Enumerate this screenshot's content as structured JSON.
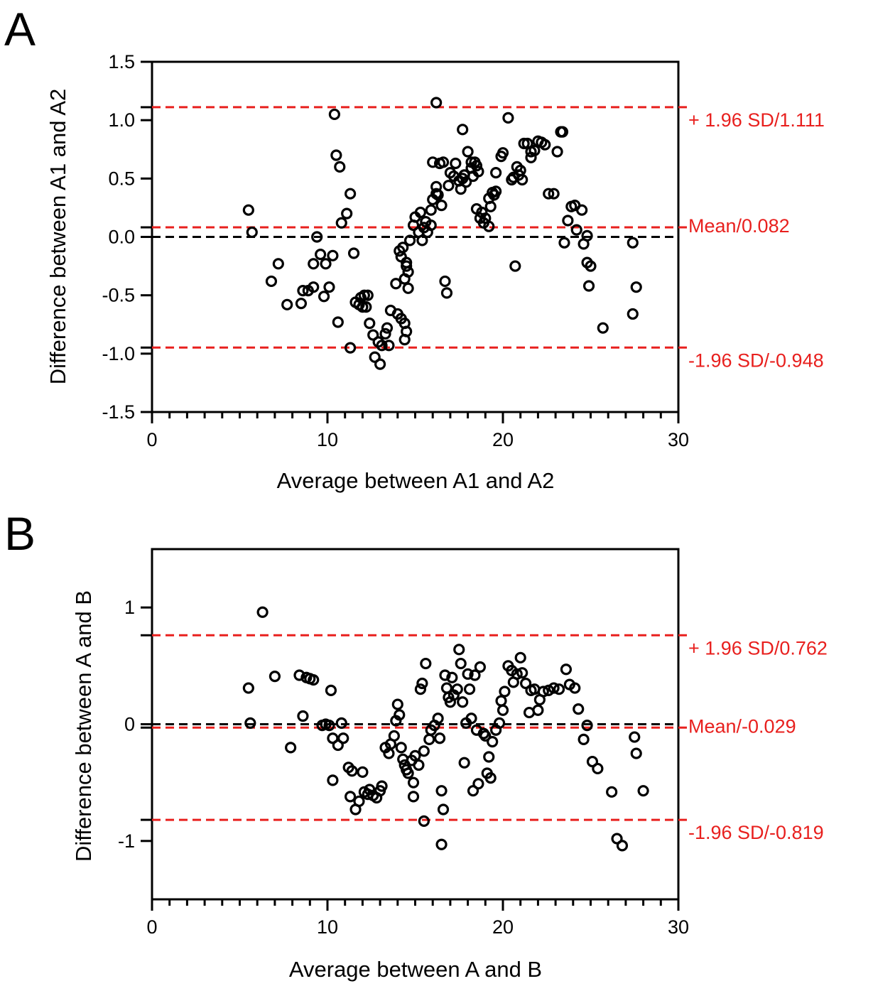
{
  "colors": {
    "axis": "#000000",
    "ref_line": "#e8201e",
    "zero_line": "#000000",
    "marker": "#000000"
  },
  "chart_data": [
    {
      "type": "scatter",
      "panel": "A",
      "xlabel": "Average between A1 and A2",
      "ylabel": "Difference between A1 and A2",
      "xlim": [
        0,
        30
      ],
      "ylim": [
        -1.5,
        1.5
      ],
      "x_ticks": [
        0,
        10,
        20,
        30
      ],
      "x_tick_labels": [
        "0",
        "10",
        "20",
        "30"
      ],
      "y_ticks": [
        -1.5,
        -1.0,
        -0.5,
        0.0,
        0.5,
        1.0,
        1.5
      ],
      "y_tick_labels": [
        "-1.5",
        "-1.0",
        "-0.5",
        "0.0",
        "0.5",
        "1.0",
        "1.5"
      ],
      "zero_line": 0,
      "reference_lines": [
        {
          "label": "+ 1.96 SD/1.111",
          "value": 1.111
        },
        {
          "label": "Mean/0.082",
          "value": 0.082
        },
        {
          "label": "-1.96 SD/-0.948",
          "value": -0.948
        }
      ],
      "points": [
        [
          5.5,
          0.23
        ],
        [
          5.7,
          0.04
        ],
        [
          6.8,
          -0.38
        ],
        [
          7.2,
          -0.23
        ],
        [
          7.7,
          -0.58
        ],
        [
          8.5,
          -0.57
        ],
        [
          8.6,
          -0.46
        ],
        [
          8.9,
          -0.46
        ],
        [
          9.2,
          -0.43
        ],
        [
          9.2,
          -0.23
        ],
        [
          9.4,
          0.0
        ],
        [
          9.6,
          -0.15
        ],
        [
          9.8,
          -0.51
        ],
        [
          9.9,
          -0.23
        ],
        [
          10.1,
          -0.43
        ],
        [
          10.3,
          -0.16
        ],
        [
          10.4,
          1.05
        ],
        [
          10.5,
          0.7
        ],
        [
          10.6,
          -0.73
        ],
        [
          10.7,
          0.6
        ],
        [
          10.8,
          0.12
        ],
        [
          11.1,
          0.2
        ],
        [
          11.3,
          0.37
        ],
        [
          11.3,
          -0.95
        ],
        [
          11.5,
          -0.14
        ],
        [
          11.6,
          -0.56
        ],
        [
          11.8,
          -0.58
        ],
        [
          11.9,
          -0.52
        ],
        [
          12.0,
          -0.6
        ],
        [
          12.2,
          -0.6
        ],
        [
          12.1,
          -0.5
        ],
        [
          12.3,
          -0.5
        ],
        [
          12.4,
          -0.74
        ],
        [
          12.6,
          -0.84
        ],
        [
          12.7,
          -1.03
        ],
        [
          12.9,
          -0.9
        ],
        [
          13.0,
          -1.09
        ],
        [
          13.1,
          -0.93
        ],
        [
          13.3,
          -0.83
        ],
        [
          13.5,
          -0.93
        ],
        [
          13.4,
          -0.78
        ],
        [
          13.6,
          -0.63
        ],
        [
          13.9,
          -0.4
        ],
        [
          14.0,
          -0.66
        ],
        [
          14.1,
          -0.12
        ],
        [
          14.2,
          -0.17
        ],
        [
          14.3,
          -0.09
        ],
        [
          14.2,
          -0.7
        ],
        [
          14.4,
          -0.74
        ],
        [
          14.4,
          -0.88
        ],
        [
          14.5,
          -0.81
        ],
        [
          14.4,
          -0.36
        ],
        [
          14.5,
          -0.25
        ],
        [
          14.6,
          -0.3
        ],
        [
          14.5,
          -0.22
        ],
        [
          14.6,
          -0.44
        ],
        [
          14.7,
          -0.03
        ],
        [
          14.9,
          0.1
        ],
        [
          15.0,
          0.17
        ],
        [
          15.2,
          0.04
        ],
        [
          15.3,
          0.21
        ],
        [
          15.4,
          -0.03
        ],
        [
          15.5,
          0.08
        ],
        [
          15.6,
          0.13
        ],
        [
          15.7,
          0.04
        ],
        [
          15.9,
          0.1
        ],
        [
          15.9,
          0.23
        ],
        [
          16.0,
          0.32
        ],
        [
          16.0,
          0.64
        ],
        [
          16.2,
          0.37
        ],
        [
          16.3,
          0.36
        ],
        [
          16.2,
          0.43
        ],
        [
          16.4,
          0.63
        ],
        [
          16.5,
          0.27
        ],
        [
          16.6,
          0.64
        ],
        [
          16.7,
          -0.38
        ],
        [
          16.8,
          -0.48
        ],
        [
          16.9,
          0.44
        ],
        [
          17.0,
          0.55
        ],
        [
          17.2,
          0.52
        ],
        [
          17.3,
          0.63
        ],
        [
          17.5,
          0.48
        ],
        [
          17.6,
          0.41
        ],
        [
          17.7,
          0.5
        ],
        [
          17.8,
          0.53
        ],
        [
          17.9,
          0.47
        ],
        [
          18.0,
          0.73
        ],
        [
          18.2,
          0.59
        ],
        [
          18.3,
          0.52
        ],
        [
          18.4,
          0.64
        ],
        [
          18.5,
          0.61
        ],
        [
          18.6,
          0.56
        ],
        [
          18.5,
          0.24
        ],
        [
          18.7,
          0.16
        ],
        [
          18.8,
          0.21
        ],
        [
          18.9,
          0.12
        ],
        [
          19.0,
          0.16
        ],
        [
          19.2,
          0.09
        ],
        [
          19.2,
          0.33
        ],
        [
          19.3,
          0.26
        ],
        [
          19.4,
          0.38
        ],
        [
          19.5,
          0.36
        ],
        [
          19.6,
          0.39
        ],
        [
          19.6,
          0.55
        ],
        [
          19.9,
          0.69
        ],
        [
          20.0,
          0.72
        ],
        [
          20.3,
          1.02
        ],
        [
          20.5,
          0.49
        ],
        [
          20.6,
          0.51
        ],
        [
          20.7,
          -0.25
        ],
        [
          20.8,
          0.6
        ],
        [
          20.9,
          0.53
        ],
        [
          21.1,
          0.49
        ],
        [
          21.0,
          0.57
        ],
        [
          21.2,
          0.8
        ],
        [
          21.4,
          0.8
        ],
        [
          21.6,
          0.73
        ],
        [
          21.6,
          0.68
        ],
        [
          21.8,
          0.74
        ],
        [
          22.0,
          0.82
        ],
        [
          22.2,
          0.81
        ],
        [
          22.4,
          0.79
        ],
        [
          22.6,
          0.37
        ],
        [
          22.9,
          0.37
        ],
        [
          23.1,
          0.73
        ],
        [
          23.3,
          0.9
        ],
        [
          23.5,
          -0.05
        ],
        [
          23.7,
          0.14
        ],
        [
          23.9,
          0.26
        ],
        [
          24.1,
          0.27
        ],
        [
          24.2,
          0.06
        ],
        [
          24.5,
          0.23
        ],
        [
          24.6,
          -0.06
        ],
        [
          24.8,
          0.01
        ],
        [
          24.8,
          -0.22
        ],
        [
          24.9,
          -0.42
        ],
        [
          25.0,
          -0.25
        ],
        [
          25.7,
          -0.78
        ],
        [
          27.4,
          -0.05
        ],
        [
          27.6,
          -0.43
        ],
        [
          27.4,
          -0.66
        ],
        [
          23.4,
          0.9
        ],
        [
          16.2,
          1.15
        ],
        [
          17.7,
          0.92
        ],
        [
          18.2,
          0.64
        ]
      ]
    },
    {
      "type": "scatter",
      "panel": "B",
      "xlabel": "Average between A and B",
      "ylabel": "Difference between A and B",
      "xlim": [
        0,
        30
      ],
      "ylim": [
        -1.5,
        1.5
      ],
      "x_ticks": [
        0,
        10,
        20,
        30
      ],
      "x_tick_labels": [
        "0",
        "10",
        "20",
        "30"
      ],
      "y_ticks": [
        -1,
        0,
        1
      ],
      "y_tick_labels": [
        "-1",
        "0",
        "1"
      ],
      "zero_line": 0,
      "reference_lines": [
        {
          "label": "+ 1.96 SD/0.762",
          "value": 0.762
        },
        {
          "label": "Mean/-0.029",
          "value": -0.029
        },
        {
          "label": "-1.96 SD/-0.819",
          "value": -0.819
        }
      ],
      "points": [
        [
          5.5,
          0.31
        ],
        [
          5.6,
          0.01
        ],
        [
          6.3,
          0.96
        ],
        [
          7.0,
          0.41
        ],
        [
          7.9,
          -0.2
        ],
        [
          8.4,
          0.42
        ],
        [
          8.6,
          0.07
        ],
        [
          8.8,
          0.4
        ],
        [
          9.0,
          0.39
        ],
        [
          9.2,
          0.38
        ],
        [
          9.7,
          -0.01
        ],
        [
          9.9,
          0.0
        ],
        [
          10.1,
          -0.01
        ],
        [
          10.2,
          0.29
        ],
        [
          10.3,
          -0.12
        ],
        [
          10.3,
          -0.48
        ],
        [
          10.6,
          -0.18
        ],
        [
          10.8,
          0.01
        ],
        [
          10.9,
          -0.12
        ],
        [
          11.2,
          -0.37
        ],
        [
          11.3,
          -0.62
        ],
        [
          11.4,
          -0.4
        ],
        [
          11.6,
          -0.73
        ],
        [
          11.8,
          -0.66
        ],
        [
          12.0,
          -0.41
        ],
        [
          12.1,
          -0.58
        ],
        [
          12.3,
          -0.6
        ],
        [
          12.4,
          -0.56
        ],
        [
          12.6,
          -0.61
        ],
        [
          12.8,
          -0.63
        ],
        [
          13.0,
          -0.57
        ],
        [
          13.1,
          -0.53
        ],
        [
          13.3,
          -0.2
        ],
        [
          13.5,
          -0.25
        ],
        [
          13.6,
          -0.17
        ],
        [
          13.8,
          -0.1
        ],
        [
          13.9,
          0.03
        ],
        [
          14.0,
          0.17
        ],
        [
          14.1,
          0.08
        ],
        [
          14.2,
          -0.2
        ],
        [
          14.3,
          -0.3
        ],
        [
          14.4,
          -0.35
        ],
        [
          14.5,
          -0.39
        ],
        [
          14.6,
          -0.42
        ],
        [
          14.8,
          -0.31
        ],
        [
          14.9,
          -0.5
        ],
        [
          14.9,
          -0.62
        ],
        [
          15.0,
          -0.27
        ],
        [
          15.2,
          -0.35
        ],
        [
          15.3,
          0.3
        ],
        [
          15.4,
          0.35
        ],
        [
          15.5,
          -0.83
        ],
        [
          15.5,
          -0.23
        ],
        [
          15.6,
          0.52
        ],
        [
          15.8,
          -0.13
        ],
        [
          15.9,
          -0.05
        ],
        [
          16.1,
          -0.01
        ],
        [
          16.3,
          0.05
        ],
        [
          16.4,
          -0.12
        ],
        [
          16.5,
          -0.57
        ],
        [
          16.5,
          -1.03
        ],
        [
          16.6,
          -0.73
        ],
        [
          16.7,
          0.42
        ],
        [
          16.8,
          0.31
        ],
        [
          16.9,
          0.23
        ],
        [
          17.0,
          0.19
        ],
        [
          17.1,
          0.4
        ],
        [
          17.2,
          0.25
        ],
        [
          17.4,
          0.3
        ],
        [
          17.5,
          0.64
        ],
        [
          17.6,
          0.52
        ],
        [
          17.7,
          0.19
        ],
        [
          17.8,
          -0.33
        ],
        [
          17.9,
          0.01
        ],
        [
          18.0,
          0.43
        ],
        [
          18.1,
          0.3
        ],
        [
          18.2,
          0.05
        ],
        [
          18.3,
          -0.57
        ],
        [
          18.4,
          0.42
        ],
        [
          18.5,
          -0.05
        ],
        [
          18.6,
          -0.51
        ],
        [
          18.7,
          0.49
        ],
        [
          18.9,
          -0.08
        ],
        [
          19.0,
          -0.1
        ],
        [
          19.1,
          -0.42
        ],
        [
          19.2,
          -0.28
        ],
        [
          19.3,
          -0.46
        ],
        [
          19.4,
          -0.15
        ],
        [
          19.6,
          -0.05
        ],
        [
          19.8,
          0.01
        ],
        [
          19.9,
          0.2
        ],
        [
          20.0,
          0.12
        ],
        [
          20.1,
          0.28
        ],
        [
          20.3,
          0.5
        ],
        [
          20.5,
          0.46
        ],
        [
          20.6,
          0.36
        ],
        [
          20.8,
          0.43
        ],
        [
          21.0,
          0.57
        ],
        [
          21.1,
          0.44
        ],
        [
          21.3,
          0.35
        ],
        [
          21.5,
          0.1
        ],
        [
          21.6,
          0.29
        ],
        [
          21.8,
          0.3
        ],
        [
          22.0,
          0.12
        ],
        [
          22.1,
          0.21
        ],
        [
          22.3,
          0.28
        ],
        [
          22.6,
          0.29
        ],
        [
          22.9,
          0.31
        ],
        [
          23.2,
          0.3
        ],
        [
          23.6,
          0.47
        ],
        [
          23.8,
          0.34
        ],
        [
          24.1,
          0.31
        ],
        [
          24.3,
          0.13
        ],
        [
          24.6,
          -0.13
        ],
        [
          24.8,
          -0.01
        ],
        [
          25.1,
          -0.32
        ],
        [
          25.4,
          -0.38
        ],
        [
          26.2,
          -0.58
        ],
        [
          26.5,
          -0.98
        ],
        [
          26.8,
          -1.04
        ],
        [
          27.5,
          -0.11
        ],
        [
          27.6,
          -0.25
        ],
        [
          28.0,
          -0.57
        ]
      ]
    }
  ]
}
